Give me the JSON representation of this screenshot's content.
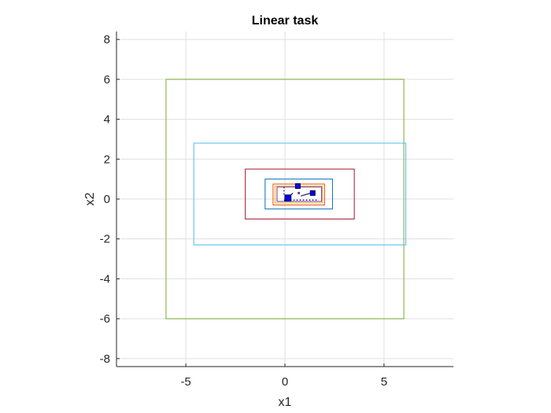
{
  "chart_data": {
    "type": "line",
    "title": "Linear task",
    "xlabel": "x1",
    "ylabel": "x2",
    "xlim": [
      -8.5,
      8.5
    ],
    "ylim": [
      -8.4,
      8.4
    ],
    "xticks": [
      -5,
      0,
      5
    ],
    "yticks": [
      -8,
      -6,
      -4,
      -2,
      0,
      2,
      4,
      6,
      8
    ],
    "grid": true,
    "rectangles": [
      {
        "x_min": -6,
        "x_max": 6,
        "y_min": -6,
        "y_max": 6,
        "color": "#77ac30"
      },
      {
        "x_min": -4.6,
        "x_max": 6.1,
        "y_min": -2.3,
        "y_max": 2.8,
        "color": "#4dbeee"
      },
      {
        "x_min": -2,
        "x_max": 3.5,
        "y_min": -1,
        "y_max": 1.5,
        "color": "#a2142f"
      },
      {
        "x_min": -1,
        "x_max": 2.4,
        "y_min": -0.5,
        "y_max": 1,
        "color": "#0072bd"
      },
      {
        "x_min": -0.6,
        "x_max": 2.0,
        "y_min": -0.3,
        "y_max": 0.75,
        "color": "#d95319"
      },
      {
        "x_min": -0.5,
        "x_max": 1.9,
        "y_min": -0.2,
        "y_max": 0.65,
        "color": "#edb120"
      },
      {
        "x_min": -0.4,
        "x_max": 1.85,
        "y_min": -0.12,
        "y_max": 0.6,
        "color": "#7e2f8e"
      }
    ],
    "markers": [
      {
        "x": 0.65,
        "y": 0.65,
        "size": 1
      },
      {
        "x": 1.4,
        "y": 0.3,
        "size": 1
      },
      {
        "x": 0.15,
        "y": 0.05,
        "size": 1.3
      }
    ],
    "marker_color": "#0000ff",
    "segments": [
      {
        "x1": 0.15,
        "y1": 0.05,
        "x2": 0.4,
        "y2": 0.3
      },
      {
        "x1": 0.8,
        "y1": 0.15,
        "x2": 1.3,
        "y2": 0.3
      }
    ],
    "dotted_lines": [
      {
        "x1": -0.05,
        "y1": -0.05,
        "x2": 1.7,
        "y2": -0.05
      },
      {
        "x1": -0.05,
        "y1": 0.6,
        "x2": -0.05,
        "y2": 0.15
      }
    ],
    "small_points": [
      {
        "x": 0.7,
        "y": 0.3
      }
    ]
  }
}
